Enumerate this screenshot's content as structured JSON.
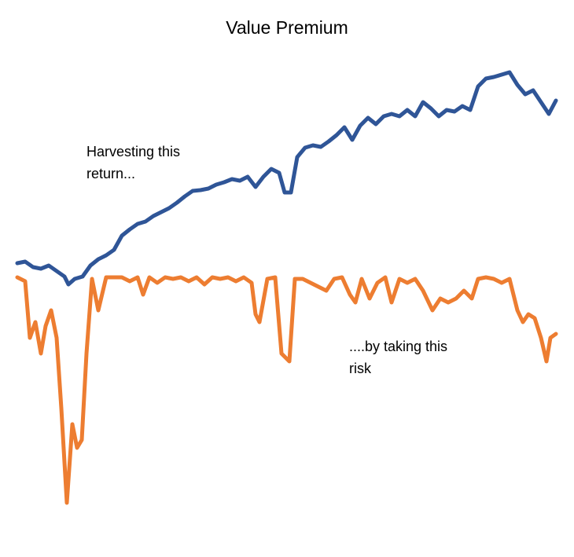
{
  "chart_data": {
    "type": "line",
    "title": "Value Premium",
    "annotations": [
      {
        "lines": [
          "Harvesting this",
          "return..."
        ]
      },
      {
        "lines": [
          "....by taking this",
          "risk"
        ]
      }
    ],
    "xlim": [
      0,
      685
    ],
    "ylim": [
      -300,
      300
    ],
    "grid": false,
    "series": [
      {
        "color": "#2f5597",
        "x": [
          0,
          10,
          20,
          30,
          40,
          50,
          60,
          65,
          73,
          83,
          93,
          103,
          113,
          123,
          133,
          143,
          153,
          163,
          173,
          183,
          193,
          203,
          213,
          223,
          233,
          243,
          253,
          263,
          273,
          283,
          293,
          303,
          313,
          323,
          333,
          340,
          348,
          356,
          366,
          376,
          386,
          396,
          406,
          416,
          426,
          436,
          446,
          456,
          466,
          476,
          486,
          496,
          506,
          516,
          526,
          536,
          546,
          556,
          566,
          576,
          586,
          596,
          606,
          616,
          626,
          636,
          646,
          656,
          666,
          676,
          685
        ],
        "values": [
          18,
          20,
          13,
          11,
          15,
          8,
          1,
          -9,
          -2,
          1,
          15,
          23,
          28,
          35,
          53,
          61,
          68,
          71,
          78,
          83,
          88,
          95,
          103,
          110,
          111,
          113,
          118,
          121,
          125,
          123,
          128,
          115,
          128,
          138,
          133,
          108,
          108,
          153,
          165,
          168,
          166,
          173,
          181,
          191,
          175,
          193,
          203,
          195,
          205,
          208,
          205,
          213,
          205,
          223,
          215,
          205,
          213,
          211,
          218,
          213,
          243,
          253,
          255,
          258,
          261,
          245,
          233,
          238,
          223,
          208,
          225
        ]
      },
      {
        "color": "#ed7d31",
        "x": [
          0,
          10,
          16,
          23,
          30,
          36,
          43,
          50,
          56,
          63,
          70,
          76,
          82,
          88,
          95,
          103,
          113,
          123,
          133,
          143,
          153,
          160,
          168,
          178,
          188,
          198,
          208,
          218,
          228,
          238,
          248,
          258,
          268,
          278,
          288,
          298,
          303,
          308,
          318,
          328,
          336,
          346,
          353,
          363,
          373,
          383,
          393,
          403,
          413,
          423,
          430,
          438,
          448,
          458,
          468,
          476,
          486,
          496,
          506,
          516,
          528,
          538,
          548,
          558,
          568,
          578,
          586,
          596,
          606,
          616,
          626,
          636,
          643,
          650,
          658,
          666,
          673,
          678,
          685
        ],
        "values": [
          0,
          -5,
          -77,
          -57,
          -97,
          -62,
          -42,
          -77,
          -167,
          -287,
          -187,
          -217,
          -207,
          -97,
          -2,
          -42,
          0,
          0,
          0,
          -5,
          0,
          -22,
          0,
          -7,
          0,
          -2,
          0,
          -5,
          0,
          -9,
          0,
          -2,
          0,
          -5,
          0,
          -7,
          -47,
          -57,
          -2,
          0,
          -97,
          -107,
          -2,
          -2,
          -7,
          -12,
          -17,
          -2,
          0,
          -22,
          -32,
          -2,
          -27,
          -7,
          0,
          -32,
          -2,
          -7,
          -2,
          -17,
          -42,
          -27,
          -32,
          -27,
          -17,
          -27,
          -2,
          0,
          -2,
          -7,
          -2,
          -42,
          -57,
          -47,
          -52,
          -77,
          -107,
          -77,
          -72
        ]
      }
    ]
  }
}
